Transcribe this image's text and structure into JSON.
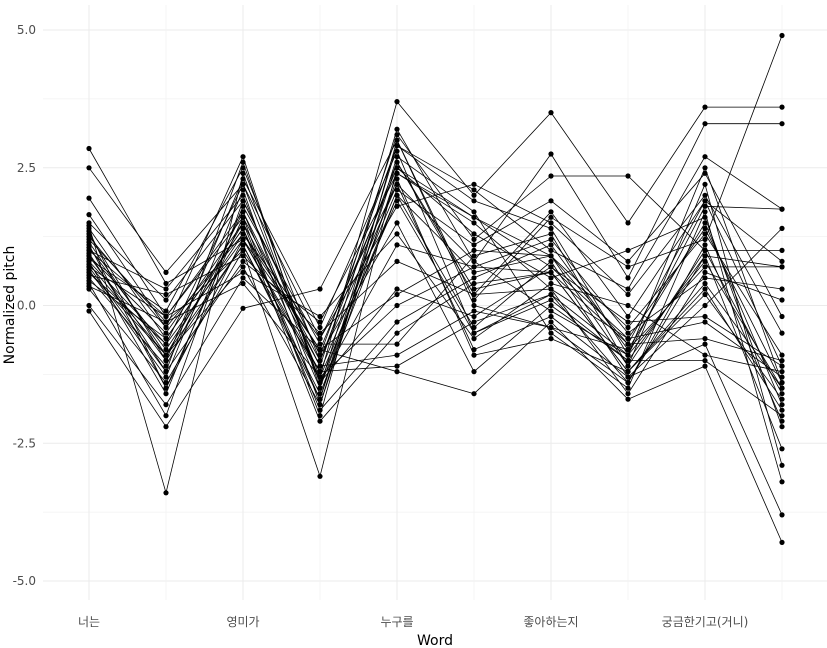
{
  "chart_data": {
    "type": "line",
    "title": "",
    "xlabel": "Word",
    "ylabel": "Normalized pitch",
    "ylim": [
      -5.5,
      5.0
    ],
    "grid": true,
    "legend": "none",
    "line_color": "#000000",
    "x_major_ticks": [
      "너는",
      "영미가",
      "누구를",
      "좋아하는지",
      "궁금한기고(거니)"
    ],
    "y_ticks": [
      "5.0",
      "2.5",
      "0.0",
      "-2.5",
      "-5.0"
    ],
    "y_tick_values": [
      5.0,
      2.5,
      0.0,
      -2.5,
      -5.0
    ],
    "x_positions": [
      "너는",
      "p2",
      "영미가",
      "p4",
      "누구를",
      "p6",
      "좋아하는지",
      "p8",
      "궁금한기고(거니)",
      "p10"
    ],
    "series": [
      {
        "values": [
          2.85,
          0.4,
          1.2,
          -0.8,
          2.5,
          1.6,
          0.9,
          -0.7,
          1.9,
          -1.1
        ]
      },
      {
        "values": [
          2.5,
          0.6,
          2.2,
          -1.3,
          3.7,
          2.0,
          3.5,
          1.5,
          3.6,
          3.6
        ]
      },
      {
        "values": [
          1.95,
          -0.2,
          1.7,
          -1.1,
          3.1,
          1.2,
          2.35,
          2.35,
          1.0,
          -1.6
        ]
      },
      {
        "values": [
          1.65,
          -0.4,
          2.7,
          -1.5,
          3.2,
          0.8,
          2.75,
          0.5,
          3.3,
          3.3
        ]
      },
      {
        "values": [
          1.5,
          0.1,
          1.9,
          -0.9,
          2.9,
          1.9,
          1.4,
          -0.9,
          1.8,
          1.75
        ]
      },
      {
        "values": [
          1.4,
          -0.6,
          1.4,
          -1.7,
          2.6,
          0.3,
          0.6,
          -1.2,
          0.4,
          -1.5
        ]
      },
      {
        "values": [
          1.3,
          -1.0,
          2.3,
          -0.4,
          2.8,
          -0.5,
          0.1,
          -1.0,
          0.9,
          0.7
        ]
      },
      {
        "values": [
          1.2,
          -0.3,
          1.0,
          -1.2,
          2.1,
          1.1,
          1.9,
          0.8,
          2.4,
          -0.2
        ]
      },
      {
        "values": [
          1.1,
          -1.5,
          1.6,
          -2.0,
          3.0,
          0.0,
          -0.4,
          -1.4,
          1.1,
          -2.1
        ]
      },
      {
        "values": [
          1.05,
          -0.8,
          1.3,
          -0.6,
          1.8,
          2.2,
          1.5,
          0.2,
          2.0,
          -0.5
        ]
      },
      {
        "values": [
          1.0,
          0.3,
          2.0,
          -1.4,
          0.3,
          -0.2,
          0.7,
          -0.6,
          -0.3,
          -1.3
        ]
      },
      {
        "values": [
          0.95,
          -1.2,
          0.8,
          -0.3,
          2.4,
          1.5,
          0.3,
          -1.6,
          0.6,
          0.1
        ]
      },
      {
        "values": [
          0.9,
          -0.5,
          1.5,
          -1.9,
          -0.3,
          0.5,
          1.1,
          -0.8,
          1.5,
          -1.8
        ]
      },
      {
        "values": [
          0.85,
          -0.1,
          2.5,
          -1.0,
          2.2,
          -0.8,
          -0.2,
          -1.3,
          0.0,
          1.4
        ]
      },
      {
        "values": [
          0.8,
          -1.6,
          1.8,
          -0.7,
          -0.7,
          0.9,
          1.3,
          -1.1,
          2.2,
          -2.9
        ]
      },
      {
        "values": [
          0.75,
          -0.9,
          1.1,
          -1.6,
          2.0,
          0.6,
          0.9,
          -0.4,
          1.3,
          -0.9
        ]
      },
      {
        "values": [
          0.7,
          -0.2,
          0.6,
          -0.2,
          1.3,
          -0.6,
          0.4,
          0.0,
          -0.9,
          -1.2
        ]
      },
      {
        "values": [
          0.65,
          -1.3,
          2.1,
          -1.8,
          2.7,
          1.7,
          -0.5,
          -1.5,
          1.7,
          -3.2
        ]
      },
      {
        "values": [
          0.6,
          -0.7,
          1.2,
          -1.2,
          -1.1,
          -0.3,
          0.2,
          -0.9,
          0.8,
          -1.5
        ]
      },
      {
        "values": [
          0.55,
          0.2,
          0.9,
          -0.5,
          0.8,
          0.2,
          1.7,
          -0.2,
          1.9,
          0.8
        ]
      },
      {
        "values": [
          0.5,
          -1.1,
          1.7,
          -1.5,
          2.3,
          -0.9,
          -0.6,
          -1.2,
          0.2,
          -1.7
        ]
      },
      {
        "values": [
          0.45,
          -0.6,
          1.4,
          -2.1,
          -0.5,
          0.4,
          0.6,
          -0.7,
          -0.6,
          -1.0
        ]
      },
      {
        "values": [
          0.4,
          -2.0,
          1.9,
          -0.9,
          1.5,
          -1.2,
          0.0,
          -1.0,
          -1.0,
          -2.0
        ]
      },
      {
        "values": [
          0.35,
          -0.3,
          0.4,
          -1.3,
          0.0,
          0.7,
          1.2,
          -0.5,
          0.5,
          0.3
        ]
      },
      {
        "values": [
          0.3,
          -1.4,
          1.0,
          -3.1,
          2.5,
          1.3,
          0.5,
          1.0,
          1.6,
          -2.2
        ]
      },
      {
        "values": [
          1.45,
          -3.4,
          2.4,
          -1.4,
          2.0,
          -0.4,
          0.8,
          -1.3,
          -0.7,
          -3.8
        ]
      },
      {
        "values": [
          0.0,
          -1.8,
          0.5,
          -0.8,
          -1.2,
          -1.6,
          -0.3,
          -1.7,
          -1.1,
          -4.3
        ]
      },
      {
        "values": [
          -0.1,
          -2.2,
          -0.05,
          0.3,
          3.0,
          0.1,
          1.6,
          0.7,
          1.2,
          4.9
        ]
      },
      {
        "values": [
          1.15,
          -0.9,
          1.5,
          -1.1,
          -0.9,
          -0.1,
          -0.4,
          -0.8,
          0.7,
          0.7
        ]
      },
      {
        "values": [
          1.25,
          -0.4,
          1.3,
          -0.8,
          0.2,
          1.0,
          0.9,
          -1.1,
          1.0,
          1.0
        ]
      },
      {
        "values": [
          0.9,
          -1.0,
          1.1,
          -1.7,
          2.9,
          2.1,
          1.0,
          0.3,
          2.7,
          1.75
        ]
      },
      {
        "values": [
          1.0,
          -0.2,
          1.6,
          -1.0,
          2.6,
          0.2,
          0.3,
          -0.6,
          1.4,
          -1.4
        ]
      },
      {
        "values": [
          0.7,
          -1.2,
          2.6,
          -1.4,
          1.1,
          0.7,
          0.6,
          -1.2,
          0.3,
          -1.9
        ]
      },
      {
        "values": [
          0.8,
          -0.7,
          2.2,
          -0.6,
          2.2,
          0.8,
          -0.1,
          -0.9,
          2.5,
          -1.4
        ]
      },
      {
        "values": [
          1.35,
          -1.5,
          1.2,
          -1.3,
          1.9,
          -0.5,
          0.2,
          -1.4,
          0.9,
          -2.6
        ]
      },
      {
        "values": [
          0.6,
          -0.9,
          0.7,
          -1.8,
          2.4,
          1.6,
          0.7,
          -0.3,
          -0.2,
          -1.1
        ]
      }
    ]
  }
}
